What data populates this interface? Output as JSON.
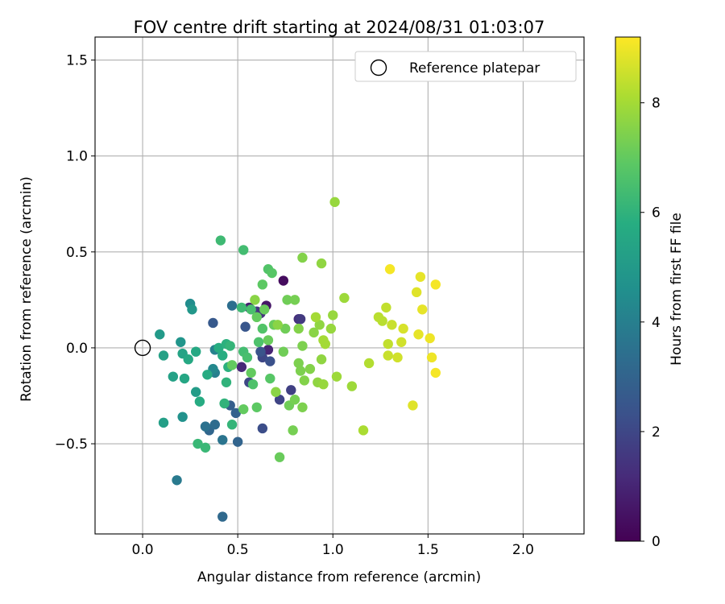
{
  "chart_data": {
    "type": "scatter",
    "title": "FOV centre drift starting at 2024/08/31 01:03:07",
    "xlabel": "Angular distance from reference (arcmin)",
    "ylabel": "Rotation from reference (arcmin)",
    "xlim": [
      -0.25,
      2.32
    ],
    "ylim": [
      -0.97,
      1.62
    ],
    "xticks": [
      0.0,
      0.5,
      1.0,
      1.5,
      2.0
    ],
    "xtick_labels": [
      "0.0",
      "0.5",
      "1.0",
      "1.5",
      "2.0"
    ],
    "yticks": [
      -0.5,
      0.0,
      0.5,
      1.0,
      1.5
    ],
    "ytick_labels": [
      "−0.5",
      "0.0",
      "0.5",
      "1.0",
      "1.5"
    ],
    "grid": true,
    "legend": {
      "location": "upper right",
      "entries": [
        {
          "label": "Reference platepar",
          "marker": "open-circle"
        }
      ]
    },
    "reference_point": {
      "x": 0.0,
      "y": 0.0
    },
    "colorbar": {
      "label": "Hours from first FF file",
      "colormap": "viridis",
      "range": [
        0,
        9.2
      ],
      "ticks": [
        0,
        2,
        4,
        6,
        8
      ],
      "tick_labels": [
        "0",
        "2",
        "4",
        "6",
        "8"
      ]
    },
    "points": [
      {
        "x": 0.74,
        "y": 0.35,
        "h": 0.3
      },
      {
        "x": 0.65,
        "y": 0.22,
        "h": 0.6
      },
      {
        "x": 0.56,
        "y": 0.21,
        "h": 0.9
      },
      {
        "x": 0.66,
        "y": -0.01,
        "h": 1.0
      },
      {
        "x": 0.52,
        "y": -0.1,
        "h": 1.1
      },
      {
        "x": 0.82,
        "y": 0.15,
        "h": 1.3
      },
      {
        "x": 0.62,
        "y": 0.18,
        "h": 1.4
      },
      {
        "x": 0.6,
        "y": 0.19,
        "h": 1.5
      },
      {
        "x": 0.83,
        "y": 0.15,
        "h": 1.6
      },
      {
        "x": 0.78,
        "y": -0.22,
        "h": 1.8
      },
      {
        "x": 0.72,
        "y": -0.27,
        "h": 1.9
      },
      {
        "x": 0.63,
        "y": -0.05,
        "h": 2.0
      },
      {
        "x": 0.56,
        "y": -0.18,
        "h": 2.0
      },
      {
        "x": 0.63,
        "y": -0.42,
        "h": 2.2
      },
      {
        "x": 0.67,
        "y": -0.07,
        "h": 2.3
      },
      {
        "x": 0.62,
        "y": -0.02,
        "h": 2.4
      },
      {
        "x": 0.54,
        "y": 0.11,
        "h": 2.5
      },
      {
        "x": 0.37,
        "y": 0.13,
        "h": 2.6
      },
      {
        "x": 0.46,
        "y": -0.3,
        "h": 2.8
      },
      {
        "x": 0.49,
        "y": -0.34,
        "h": 2.9
      },
      {
        "x": 0.5,
        "y": -0.49,
        "h": 3.0
      },
      {
        "x": 0.35,
        "y": -0.43,
        "h": 3.1
      },
      {
        "x": 0.42,
        "y": -0.88,
        "h": 3.2
      },
      {
        "x": 0.38,
        "y": -0.4,
        "h": 3.3
      },
      {
        "x": 0.47,
        "y": 0.22,
        "h": 3.4
      },
      {
        "x": 0.33,
        "y": -0.41,
        "h": 3.5
      },
      {
        "x": 0.42,
        "y": -0.48,
        "h": 3.6
      },
      {
        "x": 0.18,
        "y": -0.69,
        "h": 3.8
      },
      {
        "x": 0.38,
        "y": -0.13,
        "h": 4.0
      },
      {
        "x": 0.38,
        "y": -0.01,
        "h": 4.1
      },
      {
        "x": 0.37,
        "y": -0.11,
        "h": 4.3
      },
      {
        "x": 0.25,
        "y": 0.23,
        "h": 4.5
      },
      {
        "x": 0.21,
        "y": -0.36,
        "h": 4.7
      },
      {
        "x": 0.2,
        "y": 0.03,
        "h": 4.8
      },
      {
        "x": 0.26,
        "y": 0.2,
        "h": 4.9
      },
      {
        "x": 0.09,
        "y": 0.07,
        "h": 5.0
      },
      {
        "x": 0.28,
        "y": -0.23,
        "h": 5.1
      },
      {
        "x": 0.11,
        "y": -0.39,
        "h": 5.2
      },
      {
        "x": 0.16,
        "y": -0.15,
        "h": 5.3
      },
      {
        "x": 0.11,
        "y": -0.04,
        "h": 5.3
      },
      {
        "x": 0.21,
        "y": -0.03,
        "h": 5.4
      },
      {
        "x": 0.22,
        "y": -0.16,
        "h": 5.5
      },
      {
        "x": 0.24,
        "y": -0.06,
        "h": 5.6
      },
      {
        "x": 0.28,
        "y": -0.02,
        "h": 5.6
      },
      {
        "x": 0.3,
        "y": -0.28,
        "h": 5.7
      },
      {
        "x": 0.34,
        "y": -0.14,
        "h": 5.7
      },
      {
        "x": 0.4,
        "y": 0.0,
        "h": 5.8
      },
      {
        "x": 0.42,
        "y": -0.04,
        "h": 5.8
      },
      {
        "x": 0.44,
        "y": 0.02,
        "h": 5.9
      },
      {
        "x": 0.45,
        "y": -0.1,
        "h": 5.9
      },
      {
        "x": 0.44,
        "y": -0.18,
        "h": 6.0
      },
      {
        "x": 0.43,
        "y": -0.29,
        "h": 6.0
      },
      {
        "x": 0.46,
        "y": 0.01,
        "h": 6.1
      },
      {
        "x": 0.47,
        "y": -0.4,
        "h": 6.1
      },
      {
        "x": 0.29,
        "y": -0.5,
        "h": 6.2
      },
      {
        "x": 0.33,
        "y": -0.52,
        "h": 6.2
      },
      {
        "x": 0.41,
        "y": 0.56,
        "h": 6.3
      },
      {
        "x": 0.52,
        "y": 0.21,
        "h": 6.3
      },
      {
        "x": 0.53,
        "y": 0.51,
        "h": 6.4
      },
      {
        "x": 0.53,
        "y": -0.02,
        "h": 6.4
      },
      {
        "x": 0.55,
        "y": -0.05,
        "h": 6.5
      },
      {
        "x": 0.57,
        "y": 0.2,
        "h": 6.5
      },
      {
        "x": 0.58,
        "y": -0.19,
        "h": 6.6
      },
      {
        "x": 0.61,
        "y": 0.03,
        "h": 6.6
      },
      {
        "x": 0.63,
        "y": 0.1,
        "h": 6.7
      },
      {
        "x": 0.66,
        "y": 0.41,
        "h": 6.7
      },
      {
        "x": 0.67,
        "y": -0.16,
        "h": 6.8
      },
      {
        "x": 0.68,
        "y": 0.39,
        "h": 6.8
      },
      {
        "x": 0.63,
        "y": 0.33,
        "h": 6.9
      },
      {
        "x": 0.6,
        "y": -0.31,
        "h": 6.9
      },
      {
        "x": 0.53,
        "y": -0.32,
        "h": 7.0
      },
      {
        "x": 0.47,
        "y": -0.09,
        "h": 7.0
      },
      {
        "x": 0.57,
        "y": -0.13,
        "h": 7.0
      },
      {
        "x": 0.6,
        "y": 0.16,
        "h": 7.0
      },
      {
        "x": 0.64,
        "y": 0.2,
        "h": 7.1
      },
      {
        "x": 0.66,
        "y": 0.04,
        "h": 7.1
      },
      {
        "x": 0.69,
        "y": 0.12,
        "h": 7.1
      },
      {
        "x": 0.72,
        "y": -0.57,
        "h": 7.1
      },
      {
        "x": 0.74,
        "y": -0.02,
        "h": 7.2
      },
      {
        "x": 0.76,
        "y": 0.25,
        "h": 7.2
      },
      {
        "x": 0.77,
        "y": -0.3,
        "h": 7.2
      },
      {
        "x": 0.75,
        "y": 0.1,
        "h": 7.2
      },
      {
        "x": 0.79,
        "y": -0.43,
        "h": 7.3
      },
      {
        "x": 0.8,
        "y": -0.27,
        "h": 7.3
      },
      {
        "x": 0.8,
        "y": 0.25,
        "h": 7.3
      },
      {
        "x": 0.82,
        "y": -0.08,
        "h": 7.4
      },
      {
        "x": 0.83,
        "y": -0.12,
        "h": 7.4
      },
      {
        "x": 0.84,
        "y": 0.01,
        "h": 7.4
      },
      {
        "x": 0.84,
        "y": -0.31,
        "h": 7.4
      },
      {
        "x": 0.85,
        "y": -0.17,
        "h": 7.5
      },
      {
        "x": 0.88,
        "y": -0.11,
        "h": 7.5
      },
      {
        "x": 0.84,
        "y": 0.47,
        "h": 7.5
      },
      {
        "x": 0.82,
        "y": 0.1,
        "h": 7.5
      },
      {
        "x": 0.7,
        "y": -0.23,
        "h": 7.6
      },
      {
        "x": 0.71,
        "y": 0.12,
        "h": 7.6
      },
      {
        "x": 0.59,
        "y": 0.25,
        "h": 7.6
      },
      {
        "x": 0.9,
        "y": 0.08,
        "h": 7.6
      },
      {
        "x": 0.92,
        "y": -0.18,
        "h": 7.7
      },
      {
        "x": 0.93,
        "y": 0.12,
        "h": 7.7
      },
      {
        "x": 0.94,
        "y": 0.44,
        "h": 7.7
      },
      {
        "x": 0.94,
        "y": -0.06,
        "h": 7.7
      },
      {
        "x": 0.95,
        "y": -0.19,
        "h": 7.8
      },
      {
        "x": 0.99,
        "y": 0.1,
        "h": 7.8
      },
      {
        "x": 1.0,
        "y": 0.17,
        "h": 7.8
      },
      {
        "x": 1.01,
        "y": 0.76,
        "h": 7.8
      },
      {
        "x": 1.02,
        "y": -0.15,
        "h": 7.9
      },
      {
        "x": 1.06,
        "y": 0.26,
        "h": 7.9
      },
      {
        "x": 1.1,
        "y": -0.2,
        "h": 7.9
      },
      {
        "x": 0.91,
        "y": 0.16,
        "h": 8.0
      },
      {
        "x": 0.95,
        "y": 0.04,
        "h": 8.0
      },
      {
        "x": 0.96,
        "y": 0.02,
        "h": 8.0
      },
      {
        "x": 1.16,
        "y": -0.43,
        "h": 8.1
      },
      {
        "x": 1.19,
        "y": -0.08,
        "h": 8.2
      },
      {
        "x": 1.24,
        "y": 0.16,
        "h": 8.3
      },
      {
        "x": 1.26,
        "y": 0.14,
        "h": 8.3
      },
      {
        "x": 1.28,
        "y": 0.21,
        "h": 8.4
      },
      {
        "x": 1.29,
        "y": 0.02,
        "h": 8.4
      },
      {
        "x": 1.29,
        "y": -0.04,
        "h": 8.5
      },
      {
        "x": 1.31,
        "y": 0.12,
        "h": 8.5
      },
      {
        "x": 1.34,
        "y": -0.05,
        "h": 8.6
      },
      {
        "x": 1.36,
        "y": 0.03,
        "h": 8.6
      },
      {
        "x": 1.37,
        "y": 0.1,
        "h": 8.7
      },
      {
        "x": 1.42,
        "y": -0.3,
        "h": 8.8
      },
      {
        "x": 1.44,
        "y": 0.29,
        "h": 8.8
      },
      {
        "x": 1.45,
        "y": 0.07,
        "h": 8.9
      },
      {
        "x": 1.46,
        "y": 0.37,
        "h": 8.9
      },
      {
        "x": 1.47,
        "y": 0.2,
        "h": 8.9
      },
      {
        "x": 1.51,
        "y": 0.05,
        "h": 9.0
      },
      {
        "x": 1.52,
        "y": -0.05,
        "h": 9.0
      },
      {
        "x": 1.54,
        "y": 0.33,
        "h": 9.1
      },
      {
        "x": 1.54,
        "y": -0.13,
        "h": 9.1
      },
      {
        "x": 1.3,
        "y": 0.41,
        "h": 9.1
      }
    ]
  }
}
